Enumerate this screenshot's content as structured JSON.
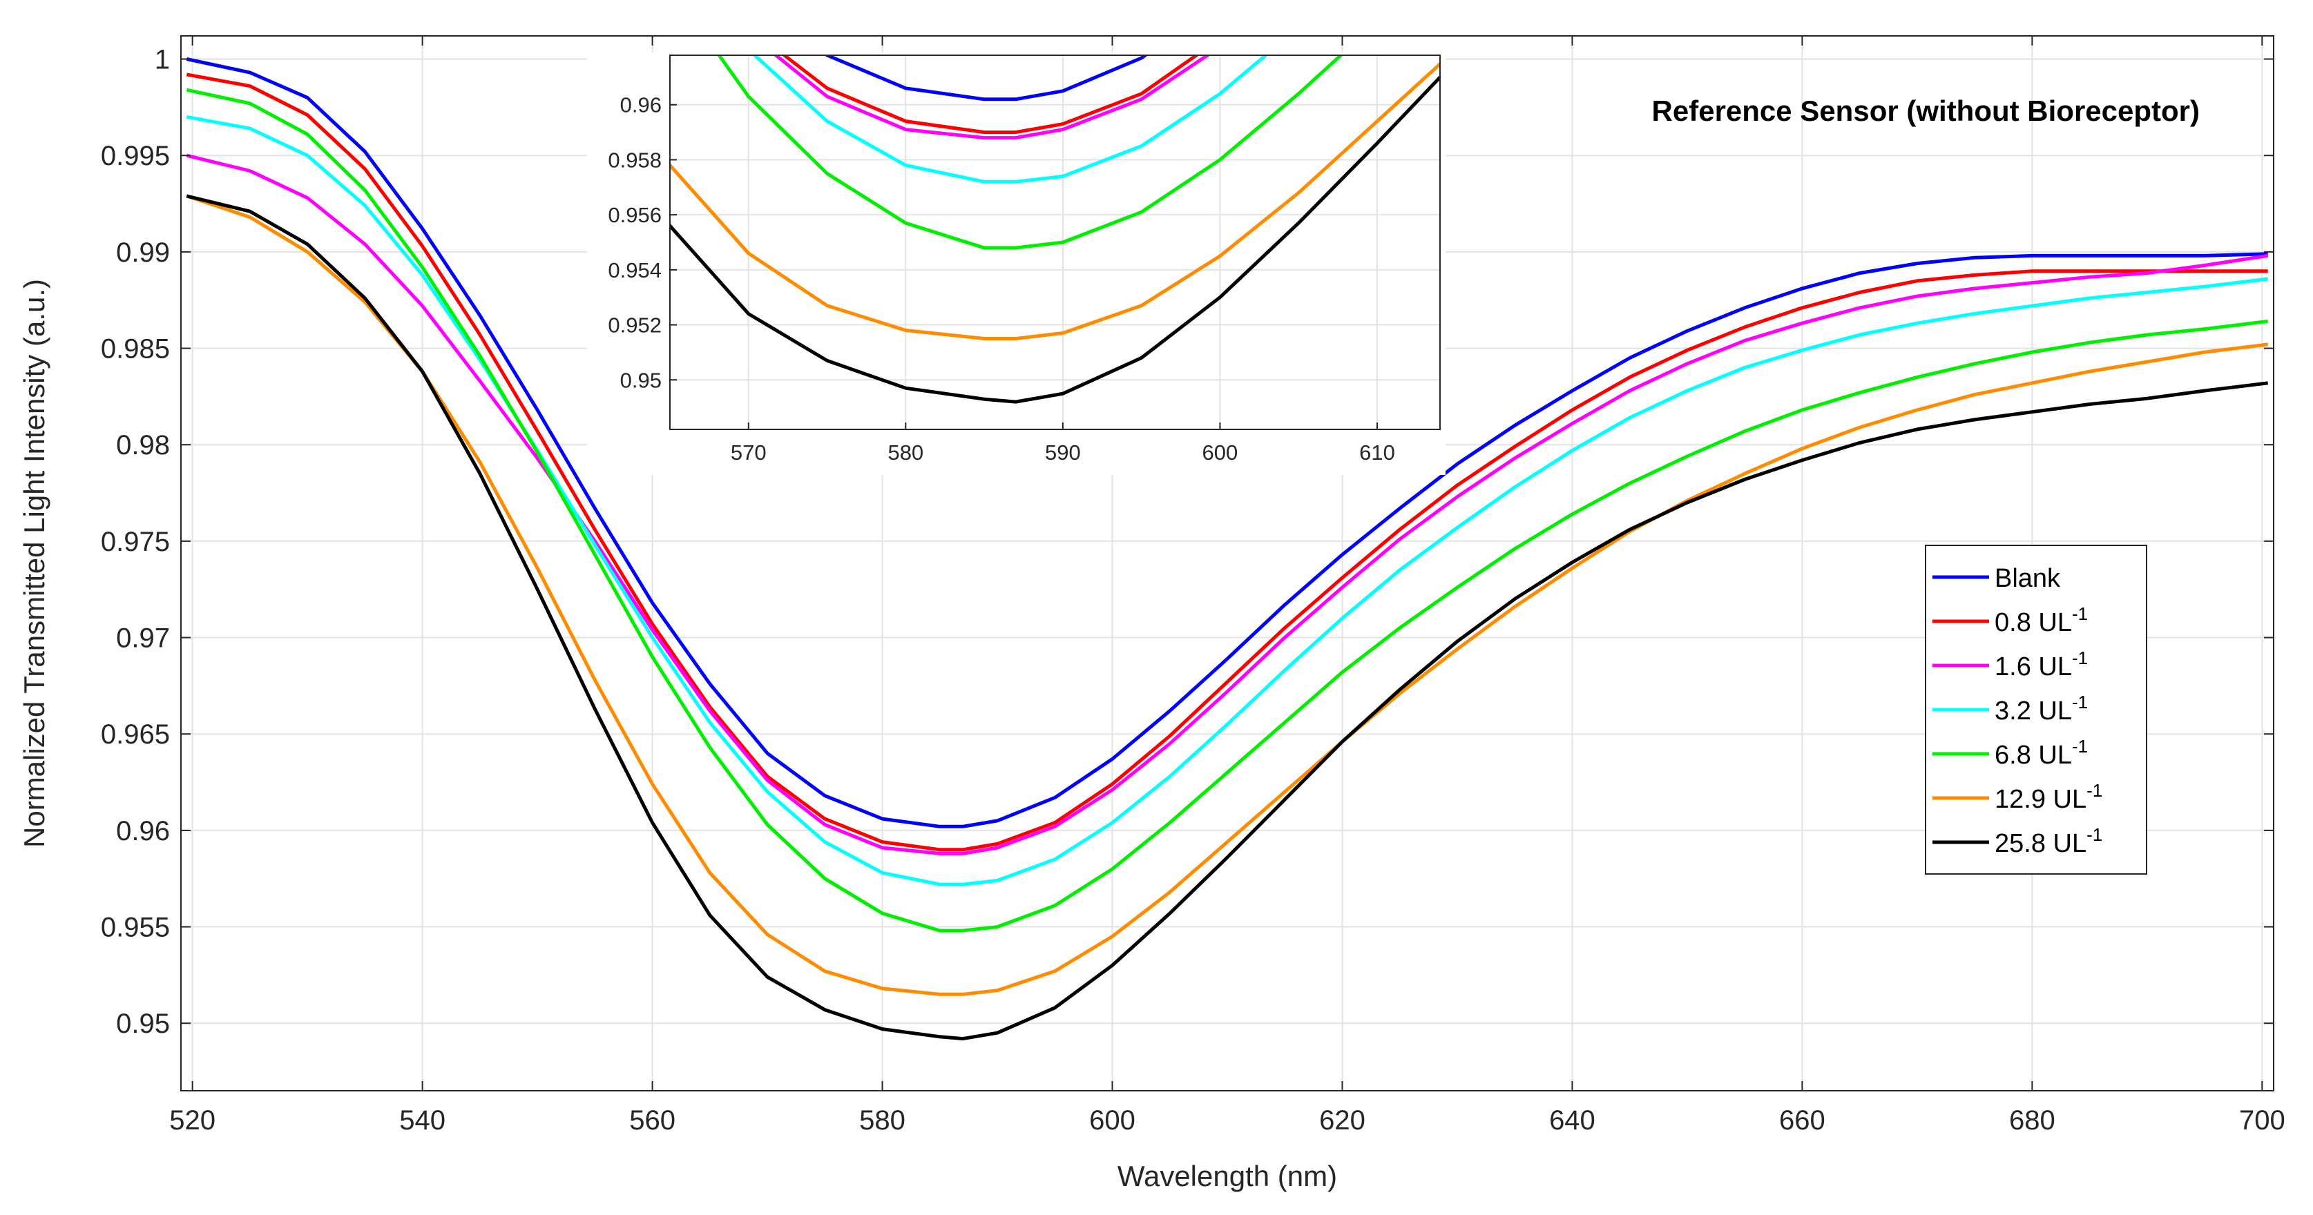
{
  "chart_data": {
    "type": "line",
    "title": "",
    "annotation": "Reference Sensor (without Bioreceptor)",
    "xlabel": "Wavelength (nm)",
    "ylabel": "Normalized Transmitted Light Intensity (a.u.)",
    "xlim": [
      519,
      701
    ],
    "ylim": [
      0.9465,
      1.0012
    ],
    "x_ticks": [
      520,
      540,
      560,
      580,
      600,
      620,
      640,
      660,
      680,
      700
    ],
    "x_tick_labels": [
      "520",
      "540",
      "560",
      "580",
      "600",
      "620",
      "640",
      "660",
      "680",
      "700"
    ],
    "y_ticks": [
      0.95,
      0.955,
      0.96,
      0.965,
      0.97,
      0.975,
      0.98,
      0.985,
      0.99,
      0.995,
      1.0
    ],
    "y_tick_labels": [
      "0.95",
      "0.955",
      "0.96",
      "0.965",
      "0.97",
      "0.975",
      "0.98",
      "0.985",
      "0.99",
      "0.995",
      "1"
    ],
    "grid": true,
    "legend_position": "right",
    "x": [
      519.5,
      525,
      530,
      535,
      540,
      545,
      550,
      555,
      560,
      565,
      570,
      575,
      580,
      585,
      587,
      590,
      595,
      600,
      605,
      610,
      615,
      620,
      625,
      630,
      635,
      640,
      645,
      650,
      655,
      660,
      665,
      670,
      675,
      680,
      685,
      690,
      695,
      700.5
    ],
    "series": [
      {
        "name": "Blank",
        "unit": "",
        "color": "#0000ff",
        "values": [
          1.0,
          0.9993,
          0.998,
          0.9952,
          0.9912,
          0.9867,
          0.9818,
          0.9767,
          0.9718,
          0.9676,
          0.964,
          0.9618,
          0.9606,
          0.9602,
          0.9602,
          0.9605,
          0.9617,
          0.9637,
          0.9662,
          0.9689,
          0.9717,
          0.9743,
          0.9767,
          0.979,
          0.981,
          0.9828,
          0.9845,
          0.9859,
          0.9871,
          0.9881,
          0.9889,
          0.9894,
          0.9897,
          0.9898,
          0.9898,
          0.9898,
          0.9898,
          0.9899
        ]
      },
      {
        "name": "0.8 UL",
        "unit": "-1",
        "color": "#ff0000",
        "values": [
          0.9992,
          0.9986,
          0.9971,
          0.9943,
          0.9903,
          0.9857,
          0.9807,
          0.9756,
          0.9707,
          0.9664,
          0.9628,
          0.9606,
          0.9594,
          0.959,
          0.959,
          0.9593,
          0.9604,
          0.9624,
          0.9649,
          0.9677,
          0.9705,
          0.9731,
          0.9756,
          0.9779,
          0.9799,
          0.9818,
          0.9835,
          0.9849,
          0.9861,
          0.9871,
          0.9879,
          0.9885,
          0.9888,
          0.989,
          0.989,
          0.989,
          0.989,
          0.989
        ]
      },
      {
        "name": "1.6 UL",
        "unit": "-1",
        "color": "#ff00ff",
        "values": [
          0.995,
          0.9942,
          0.9928,
          0.9904,
          0.9872,
          0.9833,
          0.9793,
          0.975,
          0.9704,
          0.9662,
          0.9626,
          0.9603,
          0.9591,
          0.9588,
          0.9588,
          0.9591,
          0.9602,
          0.9621,
          0.9645,
          0.9672,
          0.97,
          0.9726,
          0.9751,
          0.9773,
          0.9793,
          0.9811,
          0.9828,
          0.9842,
          0.9854,
          0.9863,
          0.9871,
          0.9877,
          0.9881,
          0.9884,
          0.9887,
          0.9889,
          0.9893,
          0.9898
        ]
      },
      {
        "name": "3.2 UL",
        "unit": "-1",
        "color": "#00ffff",
        "values": [
          0.997,
          0.9964,
          0.995,
          0.9924,
          0.9888,
          0.9844,
          0.9797,
          0.9748,
          0.97,
          0.9656,
          0.962,
          0.9594,
          0.9578,
          0.9572,
          0.9572,
          0.9574,
          0.9585,
          0.9604,
          0.9628,
          0.9655,
          0.9683,
          0.971,
          0.9735,
          0.9757,
          0.9778,
          0.9797,
          0.9814,
          0.9828,
          0.984,
          0.9849,
          0.9857,
          0.9863,
          0.9868,
          0.9872,
          0.9876,
          0.9879,
          0.9882,
          0.9886
        ]
      },
      {
        "name": "6.8 UL",
        "unit": "-1",
        "color": "#00ee00",
        "values": [
          0.9984,
          0.9977,
          0.9961,
          0.9932,
          0.9892,
          0.9846,
          0.9796,
          0.9743,
          0.969,
          0.9643,
          0.9603,
          0.9575,
          0.9557,
          0.9548,
          0.9548,
          0.955,
          0.9561,
          0.958,
          0.9604,
          0.963,
          0.9656,
          0.9682,
          0.9705,
          0.9726,
          0.9746,
          0.9764,
          0.978,
          0.9794,
          0.9807,
          0.9818,
          0.9827,
          0.9835,
          0.9842,
          0.9848,
          0.9853,
          0.9857,
          0.986,
          0.9864
        ]
      },
      {
        "name": "12.9 UL",
        "unit": "-1",
        "color": "#ff8c00",
        "values": [
          0.9929,
          0.9918,
          0.99,
          0.9874,
          0.9838,
          0.9791,
          0.9736,
          0.9678,
          0.9624,
          0.9578,
          0.9546,
          0.9527,
          0.9518,
          0.9515,
          0.9515,
          0.9517,
          0.9527,
          0.9545,
          0.9568,
          0.9594,
          0.962,
          0.9646,
          0.9671,
          0.9694,
          0.9716,
          0.9736,
          0.9755,
          0.9771,
          0.9785,
          0.9798,
          0.9809,
          0.9818,
          0.9826,
          0.9832,
          0.9838,
          0.9843,
          0.9848,
          0.9852
        ]
      },
      {
        "name": "25.8 UL",
        "unit": "-1",
        "color": "#000000",
        "values": [
          0.9929,
          0.9921,
          0.9904,
          0.9876,
          0.9838,
          0.9785,
          0.9725,
          0.9663,
          0.9604,
          0.9556,
          0.9524,
          0.9507,
          0.9497,
          0.9493,
          0.9492,
          0.9495,
          0.9508,
          0.953,
          0.9557,
          0.9586,
          0.9616,
          0.9646,
          0.9673,
          0.9698,
          0.972,
          0.9739,
          0.9756,
          0.977,
          0.9782,
          0.9792,
          0.9801,
          0.9808,
          0.9813,
          0.9817,
          0.9821,
          0.9824,
          0.9828,
          0.9832
        ]
      }
    ],
    "inset": {
      "xlim": [
        565,
        614
      ],
      "ylim": [
        0.9482,
        0.9618
      ],
      "x_ticks": [
        570,
        580,
        590,
        600,
        610
      ],
      "x_tick_labels": [
        "570",
        "580",
        "590",
        "600",
        "610"
      ],
      "y_ticks": [
        0.95,
        0.952,
        0.954,
        0.956,
        0.958,
        0.96
      ],
      "y_tick_labels": [
        "0.95",
        "0.952",
        "0.954",
        "0.956",
        "0.958",
        "0.96"
      ],
      "grid": true
    }
  }
}
